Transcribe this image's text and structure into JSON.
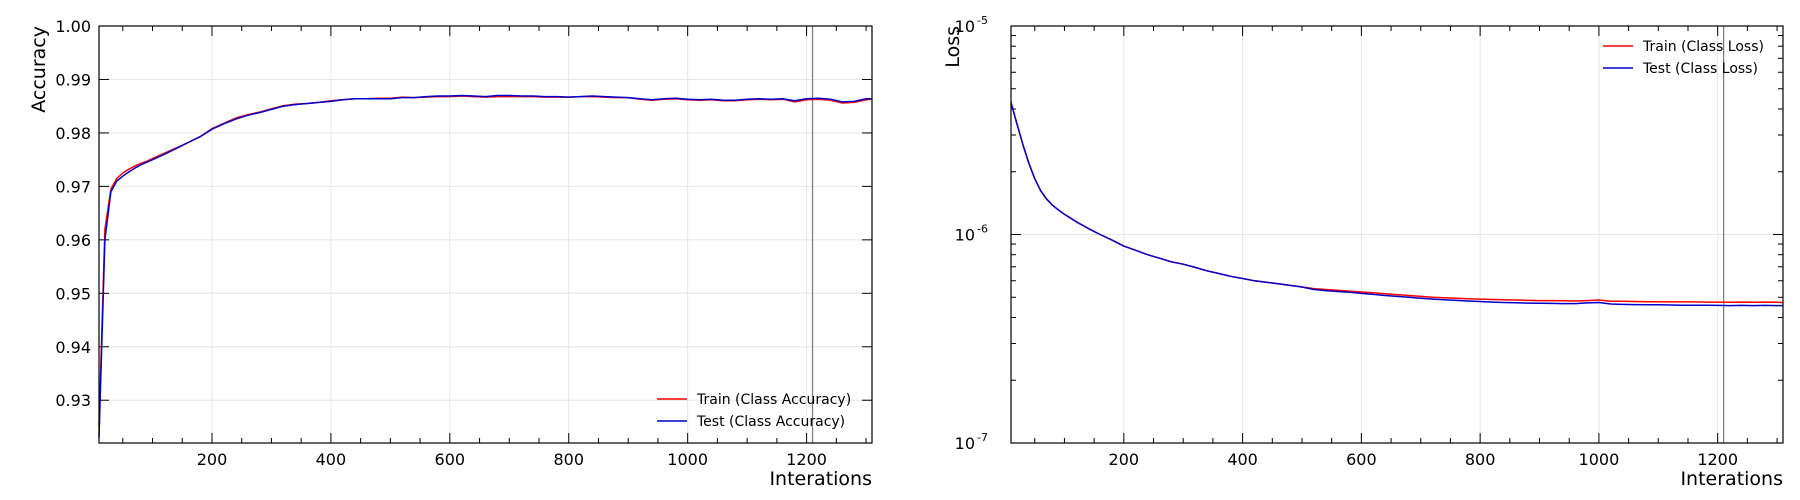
{
  "chart_data": [
    {
      "type": "line",
      "xlabel": "Interations",
      "ylabel": "Accuracy",
      "xlim": [
        10,
        1310
      ],
      "ylim": [
        0.922,
        1.0
      ],
      "xscale": "linear",
      "yscale": "linear",
      "xticks": [
        200,
        400,
        600,
        800,
        1000,
        1200
      ],
      "xtick_labels": [
        "200",
        "400",
        "600",
        "800",
        "1000",
        "1200"
      ],
      "yticks": [
        0.93,
        0.94,
        0.95,
        0.96,
        0.97,
        0.98,
        0.99,
        1.0
      ],
      "ytick_labels": [
        "0.93",
        "0.94",
        "0.95",
        "0.96",
        "0.97",
        "0.98",
        "0.99",
        "1.00"
      ],
      "grid": true,
      "legend_position": "lower-right",
      "vline_x": 1210,
      "vline_color": "#808080",
      "x": [
        10,
        20,
        30,
        40,
        50,
        60,
        70,
        80,
        90,
        100,
        120,
        140,
        160,
        180,
        200,
        220,
        240,
        260,
        280,
        300,
        320,
        340,
        360,
        380,
        400,
        420,
        440,
        460,
        480,
        500,
        520,
        540,
        560,
        580,
        600,
        620,
        640,
        660,
        680,
        700,
        720,
        740,
        760,
        780,
        800,
        820,
        840,
        860,
        880,
        900,
        920,
        940,
        960,
        980,
        1000,
        1020,
        1040,
        1060,
        1080,
        1100,
        1120,
        1140,
        1160,
        1180,
        1200,
        1220,
        1240,
        1260,
        1280,
        1300,
        1310
      ],
      "series": [
        {
          "name": "Train (Class Accuracy)",
          "color": "#ff0000",
          "values": [
            0.925,
            0.962,
            0.9695,
            0.9715,
            0.9725,
            0.9732,
            0.9738,
            0.9743,
            0.9747,
            0.9752,
            0.9762,
            0.9772,
            0.9782,
            0.9793,
            0.9808,
            0.9818,
            0.9828,
            0.9834,
            0.9839,
            0.9845,
            0.9851,
            0.9854,
            0.9855,
            0.9857,
            0.986,
            0.9862,
            0.9864,
            0.9864,
            0.9865,
            0.9865,
            0.9867,
            0.9866,
            0.9867,
            0.9868,
            0.9868,
            0.9869,
            0.9868,
            0.9867,
            0.9868,
            0.9868,
            0.9868,
            0.9868,
            0.9867,
            0.9867,
            0.9867,
            0.9868,
            0.9868,
            0.9867,
            0.9866,
            0.9866,
            0.9863,
            0.9861,
            0.9863,
            0.9864,
            0.9862,
            0.9861,
            0.9862,
            0.986,
            0.986,
            0.9862,
            0.9863,
            0.9862,
            0.9863,
            0.9858,
            0.9862,
            0.9863,
            0.9861,
            0.9856,
            0.9857,
            0.9862,
            0.9863
          ]
        },
        {
          "name": "Test (Class Accuracy)",
          "color": "#0000cc",
          "values": [
            0.923,
            0.96,
            0.969,
            0.971,
            0.9719,
            0.9727,
            0.9734,
            0.974,
            0.9745,
            0.975,
            0.976,
            0.9771,
            0.9782,
            0.9793,
            0.9807,
            0.9817,
            0.9826,
            0.9833,
            0.9838,
            0.9844,
            0.985,
            0.9853,
            0.9855,
            0.9857,
            0.9859,
            0.9862,
            0.9864,
            0.9864,
            0.9864,
            0.9864,
            0.9866,
            0.9866,
            0.9868,
            0.9869,
            0.9869,
            0.987,
            0.9869,
            0.9868,
            0.987,
            0.987,
            0.9869,
            0.9869,
            0.9868,
            0.9868,
            0.9867,
            0.9868,
            0.9869,
            0.9868,
            0.9867,
            0.9866,
            0.9864,
            0.9862,
            0.9864,
            0.9865,
            0.9863,
            0.9862,
            0.9863,
            0.9861,
            0.9861,
            0.9863,
            0.9864,
            0.9863,
            0.9864,
            0.986,
            0.9864,
            0.9865,
            0.9863,
            0.9858,
            0.9859,
            0.9864,
            0.9864
          ]
        }
      ]
    },
    {
      "type": "line",
      "xlabel": "Interations",
      "ylabel": "Loss",
      "xlim": [
        10,
        1310
      ],
      "ylim": [
        1e-07,
        1e-05
      ],
      "xscale": "linear",
      "yscale": "log",
      "xticks": [
        200,
        400,
        600,
        800,
        1000,
        1200
      ],
      "xtick_labels": [
        "200",
        "400",
        "600",
        "800",
        "1000",
        "1200"
      ],
      "yticks": [
        1e-07,
        1e-06,
        1e-05
      ],
      "ytick_base": "10",
      "ytick_exponents": [
        "-7",
        "-6",
        "-5"
      ],
      "grid": true,
      "legend_position": "top-right",
      "vline_x": 1210,
      "vline_color": "#808080",
      "x": [
        10,
        20,
        30,
        40,
        50,
        60,
        70,
        80,
        90,
        100,
        120,
        140,
        160,
        180,
        200,
        220,
        240,
        260,
        280,
        300,
        320,
        340,
        360,
        380,
        400,
        420,
        440,
        460,
        480,
        500,
        520,
        540,
        560,
        580,
        600,
        620,
        640,
        660,
        680,
        700,
        720,
        740,
        760,
        780,
        800,
        820,
        840,
        860,
        880,
        900,
        920,
        940,
        960,
        980,
        1000,
        1020,
        1040,
        1060,
        1080,
        1100,
        1120,
        1140,
        1160,
        1180,
        1200,
        1220,
        1240,
        1260,
        1280,
        1300,
        1310
      ],
      "series": [
        {
          "name": "Train (Class Loss)",
          "color": "#ff0000",
          "values": [
            4.3e-06,
            3.4e-06,
            2.7e-06,
            2.2e-06,
            1.85e-06,
            1.62e-06,
            1.48e-06,
            1.38e-06,
            1.31e-06,
            1.25e-06,
            1.15e-06,
            1.07e-06,
            1e-06,
            9.4e-07,
            8.8e-07,
            8.4e-07,
            8e-07,
            7.7e-07,
            7.4e-07,
            7.2e-07,
            6.95e-07,
            6.7e-07,
            6.5e-07,
            6.3e-07,
            6.15e-07,
            6e-07,
            5.9e-07,
            5.8e-07,
            5.7e-07,
            5.6e-07,
            5.5e-07,
            5.45e-07,
            5.4e-07,
            5.35e-07,
            5.3e-07,
            5.25e-07,
            5.2e-07,
            5.15e-07,
            5.1e-07,
            5.05e-07,
            5e-07,
            4.97e-07,
            4.95e-07,
            4.92e-07,
            4.9e-07,
            4.88e-07,
            4.86e-07,
            4.85e-07,
            4.83e-07,
            4.82e-07,
            4.82e-07,
            4.81e-07,
            4.8e-07,
            4.82e-07,
            4.85e-07,
            4.79e-07,
            4.78e-07,
            4.77e-07,
            4.76e-07,
            4.76e-07,
            4.75e-07,
            4.75e-07,
            4.75e-07,
            4.74e-07,
            4.74e-07,
            4.73e-07,
            4.74e-07,
            4.73e-07,
            4.74e-07,
            4.73e-07,
            4.72e-07
          ]
        },
        {
          "name": "Test (Class Loss)",
          "color": "#0000cc",
          "values": [
            4.3e-06,
            3.4e-06,
            2.7e-06,
            2.2e-06,
            1.85e-06,
            1.62e-06,
            1.48e-06,
            1.38e-06,
            1.31e-06,
            1.25e-06,
            1.15e-06,
            1.07e-06,
            1e-06,
            9.4e-07,
            8.8e-07,
            8.4e-07,
            8e-07,
            7.7e-07,
            7.4e-07,
            7.2e-07,
            6.95e-07,
            6.7e-07,
            6.5e-07,
            6.3e-07,
            6.15e-07,
            6e-07,
            5.9e-07,
            5.8e-07,
            5.7e-07,
            5.6e-07,
            5.45e-07,
            5.38e-07,
            5.33e-07,
            5.28e-07,
            5.22e-07,
            5.16e-07,
            5.1e-07,
            5.05e-07,
            5e-07,
            4.95e-07,
            4.9e-07,
            4.86e-07,
            4.83e-07,
            4.8e-07,
            4.77e-07,
            4.74e-07,
            4.72e-07,
            4.71e-07,
            4.69e-07,
            4.68e-07,
            4.67e-07,
            4.66e-07,
            4.66e-07,
            4.7e-07,
            4.72e-07,
            4.64e-07,
            4.62e-07,
            4.61e-07,
            4.6e-07,
            4.6e-07,
            4.59e-07,
            4.58e-07,
            4.58e-07,
            4.58e-07,
            4.57e-07,
            4.56e-07,
            4.57e-07,
            4.56e-07,
            4.57e-07,
            4.56e-07,
            4.56e-07
          ]
        }
      ]
    }
  ]
}
